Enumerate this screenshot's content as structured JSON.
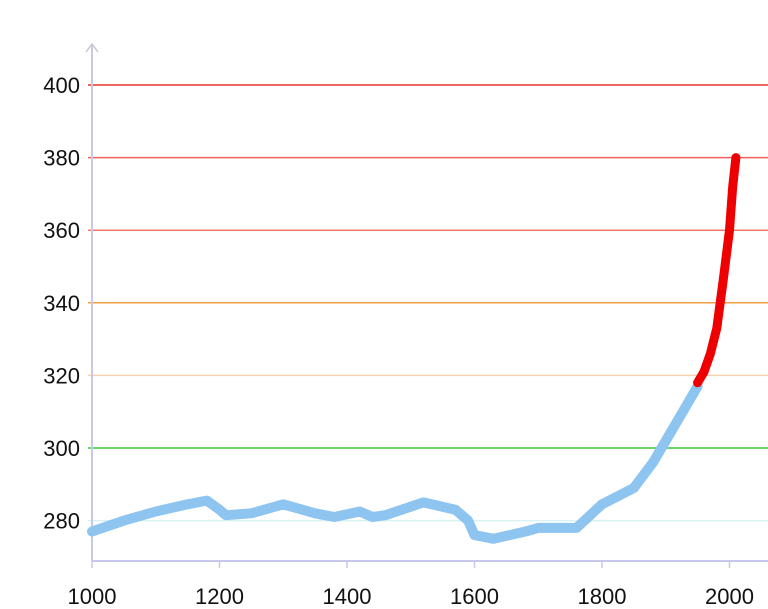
{
  "chart_data": {
    "type": "line",
    "title": "",
    "xlabel": "",
    "ylabel": "",
    "xlim": [
      1000,
      2040
    ],
    "ylim": [
      269,
      412
    ],
    "x_ticks": [
      "1000",
      "1200",
      "1400",
      "1600",
      "1800",
      "2000"
    ],
    "y_ticks": [
      "400",
      "380",
      "360",
      "340",
      "320",
      "300",
      "280"
    ],
    "grid": "horizontal",
    "gridline_colors": {
      "400": "#e8322a",
      "380": "#f06060",
      "360": "#f27a6a",
      "340": "#f0a040",
      "320": "#f7d2b0",
      "300": "#3cc83c",
      "280": "#d8f2f0"
    },
    "series": [
      {
        "color": "#8ec4f0",
        "x": [
          1000,
          1050,
          1100,
          1150,
          1180,
          1200,
          1210,
          1250,
          1300,
          1350,
          1380,
          1420,
          1440,
          1460,
          1520,
          1570,
          1590,
          1600,
          1630,
          1680,
          1700,
          1760,
          1800,
          1850,
          1880,
          1900,
          1930,
          1950
        ],
        "y": [
          277,
          280,
          282.5,
          284.5,
          285.5,
          283,
          281.5,
          282,
          284.5,
          282,
          281,
          282.5,
          281,
          281.5,
          285,
          283,
          280,
          276,
          275,
          277,
          278,
          278,
          284.5,
          289,
          296,
          302,
          311,
          317
        ]
      },
      {
        "color": "#ee0000",
        "x": [
          1950,
          1960,
          1970,
          1980,
          1990,
          2000,
          2005,
          2010
        ],
        "y": [
          318,
          321,
          326,
          333,
          346,
          360,
          372,
          380
        ]
      }
    ]
  }
}
